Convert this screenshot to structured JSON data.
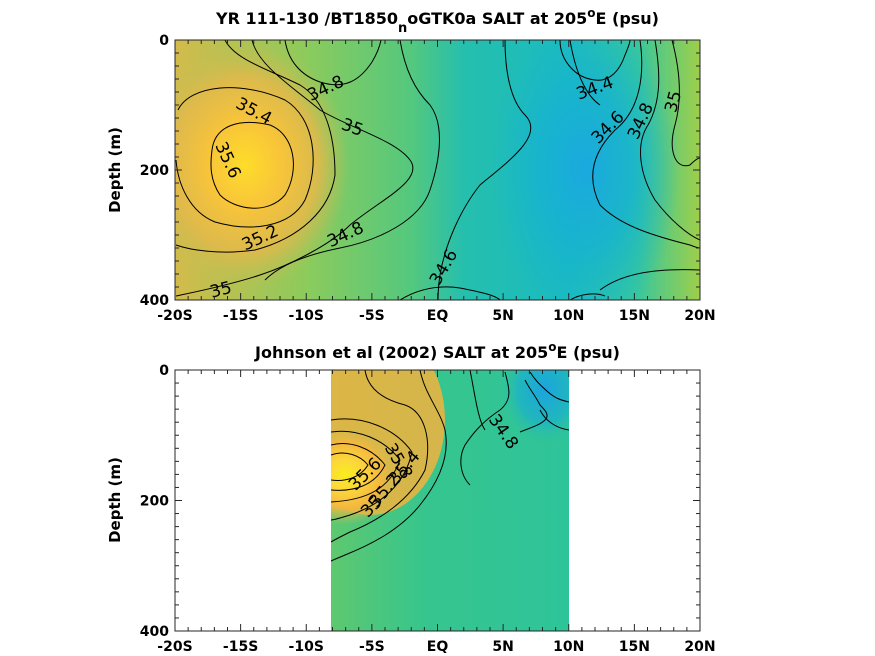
{
  "chart_data": [
    {
      "type": "heatmap",
      "title": "YR 111-130 /BT1850",
      "title_subscript": "n",
      "title_tail": "oGTK0a SALT at 205",
      "title_superscript": "o",
      "title_end": "E (psu)",
      "xlabel": "",
      "ylabel": "Depth (m)",
      "xlim": [
        -20,
        20
      ],
      "ylim": [
        0,
        400
      ],
      "y_reversed": true,
      "x_ticks": [
        -20,
        -15,
        -10,
        -5,
        0,
        5,
        10,
        15,
        20
      ],
      "x_tick_labels": [
        "-20S",
        "-15S",
        "-10S",
        "-5S",
        "EQ",
        "5N",
        "10N",
        "15N",
        "20N"
      ],
      "y_ticks": [
        0,
        200,
        400
      ],
      "y_tick_labels": [
        "0",
        "200",
        "400"
      ],
      "colormap": "parula",
      "clim": [
        34.3,
        36.0
      ],
      "data_x_range": [
        -20,
        20
      ],
      "contour_levels": [
        34.4,
        34.6,
        34.8,
        35.0,
        35.2,
        35.4,
        35.6
      ],
      "contour_labels": [
        {
          "text": "35.4",
          "x": -14.0,
          "y": 110,
          "angle": 28
        },
        {
          "text": "35.6",
          "x": -16.0,
          "y": 185,
          "angle": 65
        },
        {
          "text": "34.8",
          "x": -8.5,
          "y": 75,
          "angle": -25
        },
        {
          "text": "35",
          "x": -6.5,
          "y": 135,
          "angle": 20
        },
        {
          "text": "35.2",
          "x": -13.5,
          "y": 305,
          "angle": -25
        },
        {
          "text": "34.8",
          "x": -7.0,
          "y": 300,
          "angle": -25
        },
        {
          "text": "34.6",
          "x": 0.5,
          "y": 350,
          "angle": -60
        },
        {
          "text": "35",
          "x": -16.5,
          "y": 385,
          "angle": -15
        },
        {
          "text": "34.4",
          "x": 12.0,
          "y": 75,
          "angle": -20
        },
        {
          "text": "34.6",
          "x": 13.0,
          "y": 135,
          "angle": -45
        },
        {
          "text": "34.8",
          "x": 15.5,
          "y": 125,
          "angle": -65
        },
        {
          "text": "35",
          "x": 18.0,
          "y": 95,
          "angle": -75
        }
      ]
    },
    {
      "type": "heatmap",
      "title": "Johnson et al (2002) SALT at 205",
      "title_superscript": "o",
      "title_end": "E (psu)",
      "xlabel": "",
      "ylabel": "Depth (m)",
      "xlim": [
        -20,
        20
      ],
      "ylim": [
        0,
        400
      ],
      "y_reversed": true,
      "x_ticks": [
        -20,
        -15,
        -10,
        -5,
        0,
        5,
        10,
        15,
        20
      ],
      "x_tick_labels": [
        "-20S",
        "-15S",
        "-10S",
        "-5S",
        "EQ",
        "5N",
        "10N",
        "15N",
        "20N"
      ],
      "y_ticks": [
        0,
        200,
        400
      ],
      "y_tick_labels": [
        "0",
        "200",
        "400"
      ],
      "colormap": "parula",
      "clim": [
        34.3,
        36.0
      ],
      "data_x_range": [
        -8,
        10
      ],
      "contour_levels": [
        34.6,
        34.8,
        35.0,
        35.2,
        35.4,
        35.6,
        35.8
      ],
      "contour_labels": [
        {
          "text": "34.8",
          "x": 5.0,
          "y": 95,
          "angle": 55
        },
        {
          "text": "35",
          "x": -5.0,
          "y": 210,
          "angle": -45
        },
        {
          "text": "35.2",
          "x": -4.0,
          "y": 185,
          "angle": -50
        },
        {
          "text": "35.4",
          "x": -2.5,
          "y": 150,
          "angle": -50
        },
        {
          "text": "35.6",
          "x": -5.5,
          "y": 160,
          "angle": -45
        },
        {
          "text": "35.8",
          "x": -3.0,
          "y": 140,
          "angle": 60
        }
      ]
    }
  ]
}
